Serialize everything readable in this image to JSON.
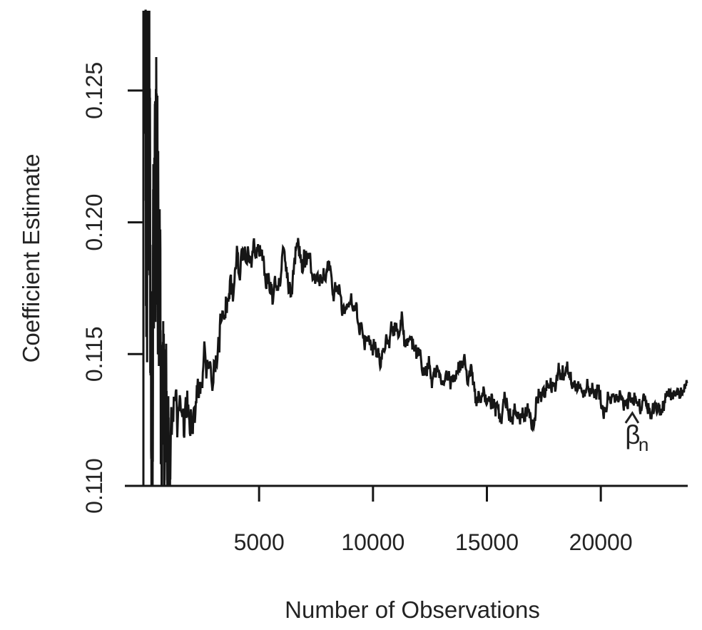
{
  "chart_data": {
    "type": "line",
    "title": "",
    "xlabel": "Number of Observations",
    "ylabel": "Coefficient Estimate",
    "x_ticks": [
      5000,
      10000,
      15000,
      20000
    ],
    "x_tick_labels": [
      "5000",
      "10000",
      "15000",
      "20000"
    ],
    "y_ticks": [
      0.11,
      0.115,
      0.12,
      0.125
    ],
    "y_tick_labels": [
      "0.110",
      "0.115",
      "0.120",
      "0.125"
    ],
    "xlim": [
      1,
      23800
    ],
    "ylim_visible": [
      0.11,
      0.12803
    ],
    "grid": false,
    "legend": "none",
    "ink_color": "#161616",
    "annotation": {
      "text": "β̂n",
      "symbol": "β",
      "accent": "hat",
      "subscript": "n",
      "x": 21400,
      "y": 0.1116
    },
    "series": [
      {
        "name": "beta-hat-n-coefficient-estimate",
        "color": "#161616",
        "n_max": 23793,
        "trend": [
          [
            1,
            0.124
          ],
          [
            60,
            0.1225
          ],
          [
            120,
            0.1215
          ],
          [
            200,
            0.1207
          ],
          [
            300,
            0.12
          ],
          [
            420,
            0.1191
          ],
          [
            520,
            0.1168
          ],
          [
            600,
            0.1161
          ],
          [
            674,
            0.1155
          ],
          [
            760,
            0.1141
          ],
          [
            830,
            0.1129
          ],
          [
            900,
            0.1121
          ],
          [
            987,
            0.1113
          ],
          [
            1060,
            0.1118
          ],
          [
            1144,
            0.1124
          ],
          [
            1300,
            0.1123
          ],
          [
            1457,
            0.1126
          ],
          [
            1600,
            0.1121
          ],
          [
            1707,
            0.1128
          ],
          [
            1850,
            0.1125
          ],
          [
            2000,
            0.1131
          ],
          [
            2083,
            0.1133
          ],
          [
            2300,
            0.1136
          ],
          [
            2450,
            0.1142
          ],
          [
            2616,
            0.1158
          ],
          [
            2750,
            0.1149
          ],
          [
            2870,
            0.1152
          ],
          [
            3023,
            0.1146
          ],
          [
            3150,
            0.1153
          ],
          [
            3336,
            0.116
          ],
          [
            3500,
            0.1165
          ],
          [
            3620,
            0.117
          ],
          [
            3712,
            0.1174
          ],
          [
            3800,
            0.1171
          ],
          [
            3869,
            0.1172
          ],
          [
            3963,
            0.1181
          ],
          [
            4057,
            0.1191
          ],
          [
            4150,
            0.1186
          ],
          [
            4276,
            0.119
          ],
          [
            4400,
            0.1188
          ],
          [
            4495,
            0.1191
          ],
          [
            4600,
            0.1189
          ],
          [
            4683,
            0.119
          ],
          [
            4809,
            0.1191
          ],
          [
            4900,
            0.1187
          ],
          [
            4965,
            0.1192
          ],
          [
            5050,
            0.1188
          ],
          [
            5153,
            0.1185
          ],
          [
            5280,
            0.1183
          ],
          [
            5372,
            0.1181
          ],
          [
            5500,
            0.118
          ],
          [
            5623,
            0.1177
          ],
          [
            5740,
            0.1178
          ],
          [
            5842,
            0.1175
          ],
          [
            5950,
            0.1177
          ],
          [
            6062,
            0.1187
          ],
          [
            6150,
            0.1184
          ],
          [
            6250,
            0.1178
          ],
          [
            6375,
            0.1176
          ],
          [
            6469,
            0.1177
          ],
          [
            6626,
            0.1189
          ],
          [
            6740,
            0.1186
          ],
          [
            6845,
            0.1185
          ],
          [
            6970,
            0.1184
          ],
          [
            7096,
            0.1184
          ],
          [
            7220,
            0.1183
          ],
          [
            7346,
            0.1182
          ],
          [
            7500,
            0.1181
          ],
          [
            7660,
            0.118
          ],
          [
            7879,
            0.1181
          ],
          [
            8050,
            0.1179
          ],
          [
            8192,
            0.1177
          ],
          [
            8400,
            0.1176
          ],
          [
            8600,
            0.1175
          ],
          [
            8756,
            0.117
          ],
          [
            8976,
            0.1166
          ],
          [
            9195,
            0.1164
          ],
          [
            9383,
            0.1161
          ],
          [
            9602,
            0.1154
          ],
          [
            9790,
            0.1153
          ],
          [
            10041,
            0.1153
          ],
          [
            10291,
            0.1152
          ],
          [
            10542,
            0.1157
          ],
          [
            10761,
            0.1159
          ],
          [
            10918,
            0.1161
          ],
          [
            11074,
            0.1158
          ],
          [
            11294,
            0.1157
          ],
          [
            11482,
            0.1154
          ],
          [
            11701,
            0.1153
          ],
          [
            11889,
            0.1151
          ],
          [
            12108,
            0.1148
          ],
          [
            12328,
            0.1145
          ],
          [
            12547,
            0.1144
          ],
          [
            12798,
            0.1143
          ],
          [
            13048,
            0.1141
          ],
          [
            13267,
            0.114
          ],
          [
            13487,
            0.1142
          ],
          [
            13706,
            0.1146
          ],
          [
            13894,
            0.1147
          ],
          [
            14019,
            0.1149
          ],
          [
            14144,
            0.1139
          ],
          [
            14270,
            0.1147
          ],
          [
            14395,
            0.1137
          ],
          [
            14614,
            0.1135
          ],
          [
            14865,
            0.1134
          ],
          [
            15084,
            0.1132
          ],
          [
            15335,
            0.1131
          ],
          [
            15554,
            0.1129
          ],
          [
            15867,
            0.113
          ],
          [
            16181,
            0.113
          ],
          [
            16494,
            0.1129
          ],
          [
            16807,
            0.1129
          ],
          [
            17026,
            0.1127
          ],
          [
            17214,
            0.1131
          ],
          [
            17434,
            0.1135
          ],
          [
            17684,
            0.1137
          ],
          [
            17904,
            0.1139
          ],
          [
            18123,
            0.1141
          ],
          [
            18374,
            0.1141
          ],
          [
            18593,
            0.114
          ],
          [
            18843,
            0.1138
          ],
          [
            19063,
            0.1135
          ],
          [
            19251,
            0.1136
          ],
          [
            19470,
            0.1135
          ],
          [
            19689,
            0.1137
          ],
          [
            19940,
            0.1134
          ],
          [
            20191,
            0.1131
          ],
          [
            20410,
            0.1134
          ],
          [
            20629,
            0.1135
          ],
          [
            20880,
            0.1132
          ],
          [
            21130,
            0.1134
          ],
          [
            21350,
            0.1133
          ],
          [
            21569,
            0.1132
          ],
          [
            21820,
            0.113
          ],
          [
            22070,
            0.1131
          ],
          [
            22290,
            0.113
          ],
          [
            22509,
            0.1131
          ],
          [
            22759,
            0.1132
          ],
          [
            23010,
            0.1135
          ],
          [
            23259,
            0.1132
          ],
          [
            23449,
            0.1134
          ],
          [
            23637,
            0.1136
          ],
          [
            23793,
            0.1138
          ]
        ],
        "noise_envelope": [
          [
            1,
            0.0092
          ],
          [
            150,
            0.0088
          ],
          [
            350,
            0.0078
          ],
          [
            550,
            0.006
          ],
          [
            750,
            0.0042
          ],
          [
            950,
            0.0028
          ],
          [
            1100,
            0.0016
          ],
          [
            1300,
            0.00125
          ],
          [
            1700,
            0.00105
          ],
          [
            2500,
            0.0009
          ],
          [
            4000,
            0.00072
          ],
          [
            6000,
            0.0006
          ],
          [
            9000,
            0.00052
          ],
          [
            13000,
            0.00055
          ],
          [
            18000,
            0.0005
          ],
          [
            23793,
            0.00045
          ]
        ]
      }
    ]
  }
}
